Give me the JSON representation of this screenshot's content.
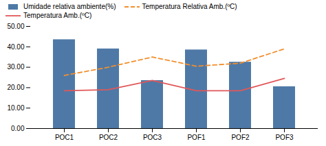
{
  "chart_data": {
    "type": "bar",
    "categories": [
      "POC1",
      "POC2",
      "POC3",
      "POF1",
      "POF2",
      "POF3"
    ],
    "series": [
      {
        "name": "Umidade relativa ambiente(%)",
        "type": "bar",
        "values": [
          43.5,
          39.0,
          23.5,
          38.5,
          32.5,
          20.5
        ]
      },
      {
        "name": "Temperatura Relativa Amb.(ºC)",
        "type": "line",
        "line_style": "dashed",
        "values": [
          26.0,
          30.0,
          35.0,
          30.5,
          32.0,
          39.0
        ]
      },
      {
        "name": "Temperatura Amb.(ºC)",
        "type": "line",
        "line_style": "solid",
        "values": [
          18.5,
          19.0,
          23.5,
          18.5,
          18.5,
          24.5
        ]
      }
    ],
    "ylim": [
      0,
      50
    ],
    "yticks": [
      {
        "value": 0,
        "label": "0.00"
      },
      {
        "value": 10,
        "label": "10.00"
      },
      {
        "value": 20,
        "label": "20.00"
      },
      {
        "value": 30,
        "label": "30.00"
      },
      {
        "value": 40,
        "label": "40.00"
      },
      {
        "value": 50,
        "label": "50.00"
      }
    ],
    "grid": false,
    "legend": "upper left"
  }
}
